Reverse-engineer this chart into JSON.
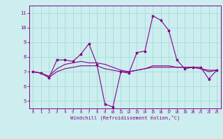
{
  "x": [
    0,
    1,
    2,
    3,
    4,
    5,
    6,
    7,
    8,
    9,
    10,
    11,
    12,
    13,
    14,
    15,
    16,
    17,
    18,
    19,
    20,
    21,
    22,
    23
  ],
  "line1": [
    7.0,
    6.9,
    6.6,
    7.8,
    7.8,
    7.7,
    8.2,
    8.9,
    7.5,
    4.8,
    4.6,
    7.0,
    6.9,
    8.3,
    8.4,
    10.8,
    10.5,
    9.8,
    7.8,
    7.2,
    7.3,
    7.3,
    6.5,
    7.1
  ],
  "line2": [
    7.0,
    6.9,
    6.6,
    7.0,
    7.2,
    7.3,
    7.4,
    7.4,
    7.4,
    7.2,
    7.1,
    7.0,
    7.0,
    7.1,
    7.2,
    7.3,
    7.3,
    7.3,
    7.3,
    7.3,
    7.3,
    7.2,
    7.1,
    7.1
  ],
  "line3": [
    7.0,
    6.9,
    6.7,
    7.2,
    7.5,
    7.6,
    7.7,
    7.6,
    7.6,
    7.5,
    7.3,
    7.1,
    7.0,
    7.1,
    7.2,
    7.4,
    7.4,
    7.4,
    7.3,
    7.3,
    7.3,
    7.2,
    7.0,
    7.1
  ],
  "line_color": "#880088",
  "bg_color": "#cceeee",
  "grid_color": "#aadddd",
  "ylabel_ticks": [
    5,
    6,
    7,
    8,
    9,
    10,
    11
  ],
  "xlabel": "Windchill (Refroidissement éolien,°C)",
  "xlim": [
    -0.5,
    23.5
  ],
  "ylim": [
    4.5,
    11.5
  ]
}
